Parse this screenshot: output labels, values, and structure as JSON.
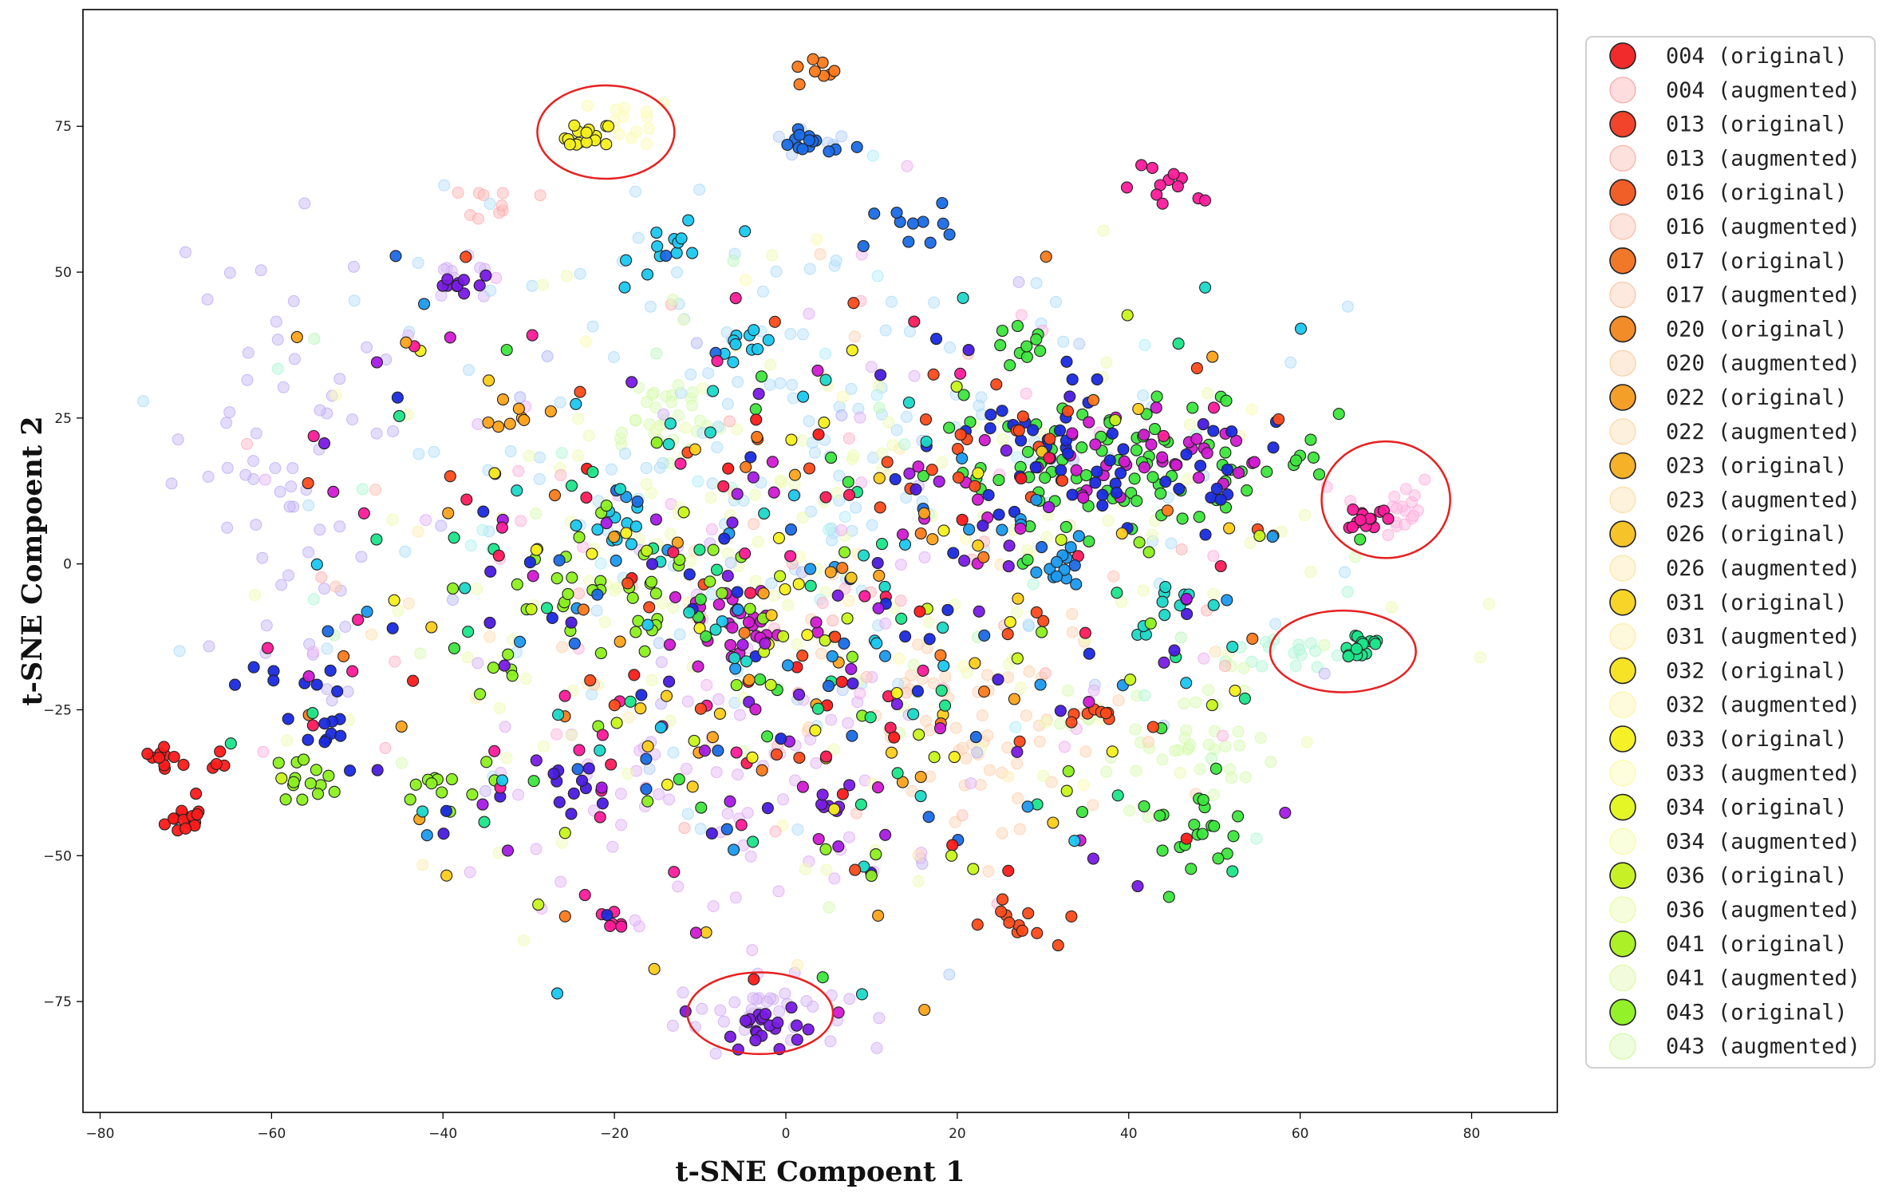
{
  "chart_data": {
    "type": "scatter",
    "title": "",
    "xlabel": "t-SNE Compoent 1",
    "ylabel": "t-SNE Compoent 2",
    "xlim": [
      -82,
      90
    ],
    "ylim": [
      -94,
      95
    ],
    "xticks": [
      -80,
      -60,
      -40,
      -20,
      0,
      20,
      40,
      60,
      80
    ],
    "yticks": [
      -75,
      -50,
      -25,
      0,
      25,
      50,
      75
    ],
    "xtick_labels": [
      "−80",
      "−60",
      "−40",
      "−20",
      "0",
      "20",
      "40",
      "60",
      "80"
    ],
    "ytick_labels": [
      "−75",
      "−50",
      "−25",
      "0",
      "25",
      "50",
      "75"
    ],
    "grid": false,
    "legend_position": "right",
    "legend": [
      "004 (original)",
      "004 (augmented)",
      "013 (original)",
      "013 (augmented)",
      "016 (original)",
      "016 (augmented)",
      "017 (original)",
      "017 (augmented)",
      "020 (original)",
      "020 (augmented)",
      "022 (original)",
      "022 (augmented)",
      "023 (original)",
      "023 (augmented)",
      "026 (original)",
      "026 (augmented)",
      "031 (original)",
      "031 (augmented)",
      "032 (original)",
      "032 (augmented)",
      "033 (original)",
      "033 (augmented)",
      "034 (original)",
      "034 (augmented)",
      "036 (original)",
      "036 (augmented)",
      "041 (original)",
      "041 (augmented)",
      "043 (original)",
      "043 (augmented)"
    ],
    "legend_colors": [
      "#f02020",
      "#f02020",
      "#f03a20",
      "#f03a20",
      "#f0561e",
      "#f0561e",
      "#f0701e",
      "#f0701e",
      "#f0861c",
      "#f0861c",
      "#f39a1c",
      "#f39a1c",
      "#f5ad1c",
      "#f5ad1c",
      "#f5c01c",
      "#f5c01c",
      "#f7d21c",
      "#f7d21c",
      "#f7e21a",
      "#f7e21a",
      "#f5f01a",
      "#f5f01a",
      "#e3f51a",
      "#e3f51a",
      "#c4f01a",
      "#c4f01a",
      "#a8ef1c",
      "#a8ef1c",
      "#8cf01e",
      "#8cf01e"
    ],
    "palette": [
      "#ff1a1a",
      "#ff4a1a",
      "#ff7a1a",
      "#ffa31a",
      "#ffcc1a",
      "#f5f01a",
      "#c8f51a",
      "#8cf01e",
      "#3ce63c",
      "#1ae68a",
      "#1ad9c8",
      "#1ac8f0",
      "#1a9af0",
      "#1a6ae6",
      "#1a2ae0",
      "#4a1ae0",
      "#7a1ae6",
      "#a61ae6",
      "#d21ad2",
      "#ff1a9a",
      "#ff1a5a"
    ],
    "clusters": [
      {
        "x": -70,
        "y": -44,
        "sx": 1.2,
        "sy": 1.2,
        "n": 16,
        "c": 0,
        "aug": false
      },
      {
        "x": -72,
        "y": -33,
        "sx": 1.5,
        "sy": 0.8,
        "n": 10,
        "c": 0,
        "aug": false
      },
      {
        "x": -67,
        "y": -36,
        "sx": 1.5,
        "sy": 2.5,
        "n": 5,
        "c": 0,
        "aug": false
      },
      {
        "x": -23,
        "y": 73,
        "sx": 1.4,
        "sy": 1.4,
        "n": 16,
        "c": 5,
        "aug": false
      },
      {
        "x": -18,
        "y": 76,
        "sx": 2.5,
        "sy": 2,
        "n": 14,
        "c": 5,
        "aug": true
      },
      {
        "x": 3,
        "y": 84,
        "sx": 1.5,
        "sy": 1.5,
        "n": 8,
        "c": 2,
        "aug": false
      },
      {
        "x": 3,
        "y": 72,
        "sx": 2.5,
        "sy": 1,
        "n": 14,
        "c": 13,
        "aug": false
      },
      {
        "x": 2,
        "y": 72,
        "sx": 3,
        "sy": 1.5,
        "n": 8,
        "c": 13,
        "aug": true
      },
      {
        "x": 45,
        "y": 64,
        "sx": 3,
        "sy": 2,
        "n": 12,
        "c": 19,
        "aug": false
      },
      {
        "x": 68,
        "y": 8,
        "sx": 1.2,
        "sy": 1.2,
        "n": 14,
        "c": 19,
        "aug": false
      },
      {
        "x": 70,
        "y": 10,
        "sx": 3,
        "sy": 3,
        "n": 18,
        "c": 19,
        "aug": true
      },
      {
        "x": 67,
        "y": -14,
        "sx": 1.5,
        "sy": 1.5,
        "n": 16,
        "c": 9,
        "aug": false
      },
      {
        "x": 60,
        "y": -15,
        "sx": 4,
        "sy": 2,
        "n": 16,
        "c": 9,
        "aug": true
      },
      {
        "x": -3,
        "y": -79,
        "sx": 2.5,
        "sy": 2,
        "n": 22,
        "c": 16,
        "aug": false
      },
      {
        "x": -3,
        "y": -77,
        "sx": 5,
        "sy": 3,
        "n": 40,
        "c": 16,
        "aug": true
      },
      {
        "x": 40,
        "y": 17,
        "sx": 12,
        "sy": 5,
        "n": 90,
        "c": 8,
        "aug": false
      },
      {
        "x": 40,
        "y": 17,
        "sx": 12,
        "sy": 5,
        "n": 40,
        "c": 18,
        "aug": false
      },
      {
        "x": 38,
        "y": 15,
        "sx": 12,
        "sy": 6,
        "n": 40,
        "c": 14,
        "aug": false
      },
      {
        "x": 28,
        "y": 37,
        "sx": 2,
        "sy": 2,
        "n": 10,
        "c": 8,
        "aug": false
      },
      {
        "x": 27,
        "y": 22,
        "sx": 4,
        "sy": 2,
        "n": 12,
        "c": 14,
        "aug": false
      },
      {
        "x": -38,
        "y": 48,
        "sx": 2,
        "sy": 1,
        "n": 10,
        "c": 16,
        "aug": false
      },
      {
        "x": -38,
        "y": 48,
        "sx": 3,
        "sy": 2,
        "n": 10,
        "c": 16,
        "aug": true
      },
      {
        "x": -12,
        "y": 55,
        "sx": 3,
        "sy": 3,
        "n": 12,
        "c": 11,
        "aug": false
      },
      {
        "x": -4,
        "y": 38,
        "sx": 2,
        "sy": 2,
        "n": 10,
        "c": 11,
        "aug": false
      },
      {
        "x": 16,
        "y": 58,
        "sx": 2,
        "sy": 2,
        "n": 10,
        "c": 13,
        "aug": false
      },
      {
        "x": -20,
        "y": 7,
        "sx": 2,
        "sy": 2,
        "n": 12,
        "c": 11,
        "aug": false
      },
      {
        "x": 33,
        "y": 0,
        "sx": 2,
        "sy": 2,
        "n": 12,
        "c": 12,
        "aug": false
      },
      {
        "x": 46,
        "y": -8,
        "sx": 3,
        "sy": 2,
        "n": 10,
        "c": 10,
        "aug": false
      },
      {
        "x": 47,
        "y": -45,
        "sx": 4,
        "sy": 3,
        "n": 20,
        "c": 8,
        "aug": false
      },
      {
        "x": 27,
        "y": -62,
        "sx": 2,
        "sy": 2,
        "n": 12,
        "c": 1,
        "aug": false
      },
      {
        "x": 35,
        "y": -26,
        "sx": 2,
        "sy": 1,
        "n": 8,
        "c": 1,
        "aug": false
      },
      {
        "x": -56,
        "y": -37,
        "sx": 2,
        "sy": 2,
        "n": 14,
        "c": 7,
        "aug": false
      },
      {
        "x": -41,
        "y": -38,
        "sx": 3,
        "sy": 2,
        "n": 12,
        "c": 7,
        "aug": false
      },
      {
        "x": -20,
        "y": -61,
        "sx": 1.5,
        "sy": 1,
        "n": 6,
        "c": 19,
        "aug": false
      },
      {
        "x": 4,
        "y": -42,
        "sx": 1.5,
        "sy": 1.5,
        "n": 6,
        "c": 16,
        "aug": false
      },
      {
        "x": -25,
        "y": -40,
        "sx": 4,
        "sy": 3,
        "n": 10,
        "c": 15,
        "aug": false
      },
      {
        "x": -58,
        "y": -20,
        "sx": 3,
        "sy": 2,
        "n": 8,
        "c": 14,
        "aug": false
      },
      {
        "x": -53,
        "y": -30,
        "sx": 3,
        "sy": 3,
        "n": 10,
        "c": 14,
        "aug": false
      },
      {
        "x": -5,
        "y": -10,
        "sx": 5,
        "sy": 4,
        "n": 30,
        "c": 18,
        "aug": false
      },
      {
        "x": -20,
        "y": -5,
        "sx": 10,
        "sy": 8,
        "n": 40,
        "c": 7,
        "aug": false
      },
      {
        "x": 20,
        "y": 20,
        "sx": 8,
        "sy": 6,
        "n": 20,
        "c": 1,
        "aug": false
      },
      {
        "x": -31,
        "y": 26,
        "sx": 1.5,
        "sy": 1.5,
        "n": 8,
        "c": 3,
        "aug": false
      },
      {
        "x": -33,
        "y": 62,
        "sx": 2,
        "sy": 1.5,
        "n": 10,
        "c": 0,
        "aug": true
      },
      {
        "x": -15,
        "y": 25,
        "sx": 4,
        "sy": 4,
        "n": 30,
        "c": 7,
        "aug": true
      },
      {
        "x": -60,
        "y": 15,
        "sx": 6,
        "sy": 20,
        "n": 60,
        "c": 15,
        "aug": true
      },
      {
        "x": 45,
        "y": -30,
        "sx": 6,
        "sy": 6,
        "n": 40,
        "c": 7,
        "aug": true
      },
      {
        "x": 25,
        "y": -30,
        "sx": 10,
        "sy": 10,
        "n": 60,
        "c": 2,
        "aug": true
      },
      {
        "x": -10,
        "y": -40,
        "sx": 12,
        "sy": 10,
        "n": 60,
        "c": 17,
        "aug": true
      },
      {
        "x": 0,
        "y": 20,
        "sx": 25,
        "sy": 20,
        "n": 140,
        "c": 12,
        "aug": true
      },
      {
        "x": 5,
        "y": 0,
        "sx": 28,
        "sy": 22,
        "n": 140,
        "c": 6,
        "aug": true
      },
      {
        "x": 0,
        "y": -10,
        "sx": 30,
        "sy": 25,
        "n": 520,
        "c": -1,
        "aug": false
      },
      {
        "x": 0,
        "y": 0,
        "sx": 32,
        "sy": 28,
        "n": 260,
        "c": -1,
        "aug": true
      }
    ],
    "annotations": [
      {
        "type": "ellipse",
        "cx": -21,
        "cy": 74,
        "rx": 8,
        "ry": 8,
        "color": "#e82020"
      },
      {
        "type": "ellipse",
        "cx": 70,
        "cy": 11,
        "rx": 7.5,
        "ry": 10,
        "color": "#e82020"
      },
      {
        "type": "ellipse",
        "cx": 65,
        "cy": -15,
        "rx": 8.5,
        "ry": 7,
        "color": "#e82020"
      },
      {
        "type": "ellipse",
        "cx": -3,
        "cy": -77,
        "rx": 8.5,
        "ry": 7,
        "color": "#e82020"
      }
    ]
  }
}
